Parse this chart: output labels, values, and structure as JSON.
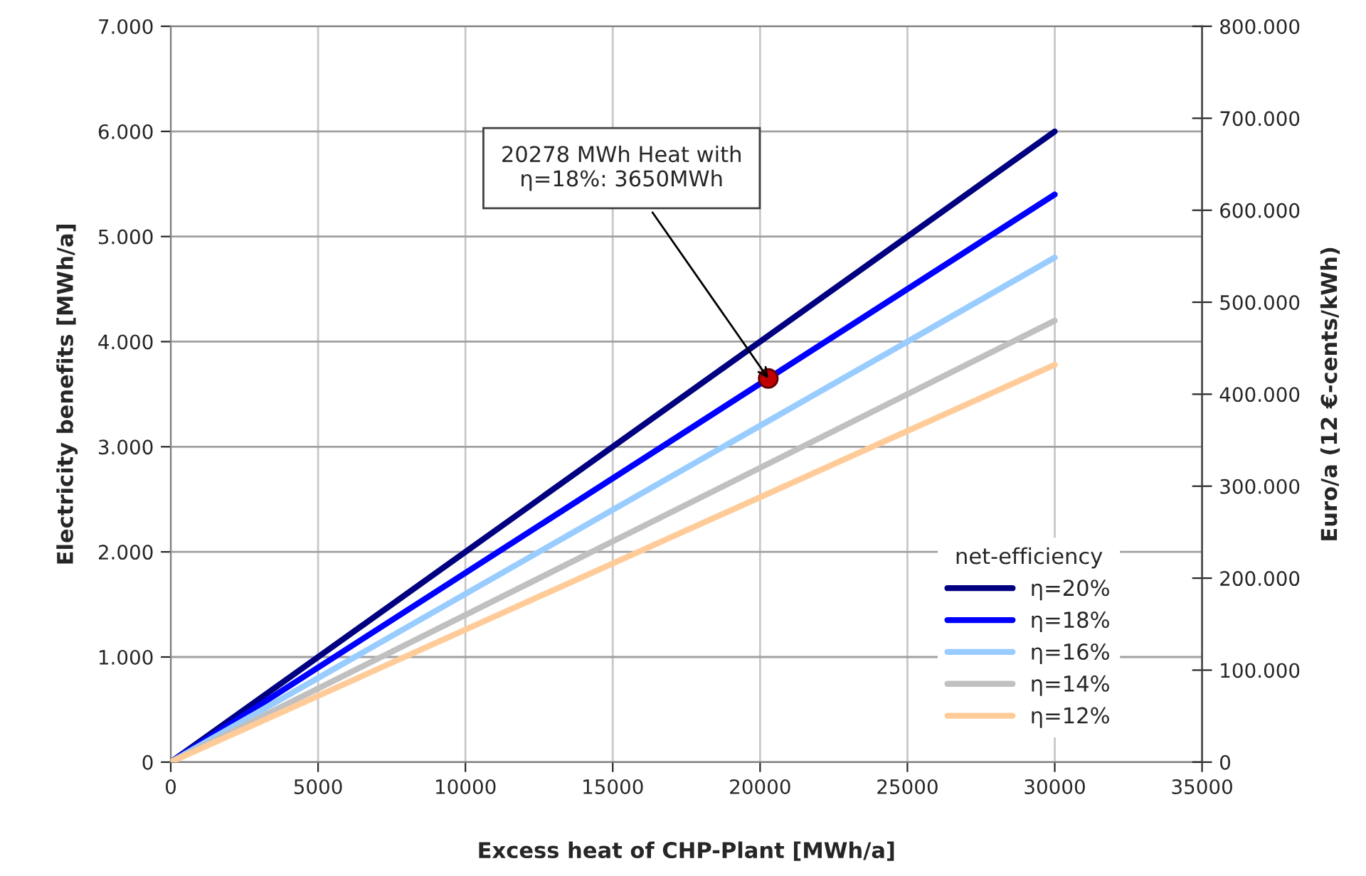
{
  "chart_data": {
    "type": "line",
    "xlabel": "Excess heat of CHP-Plant [MWh/a]",
    "ylabel": "Electricity benefits [MWh/a]",
    "y2label": "Euro/a (12 €-cents/kWh)",
    "legend_title": "net-efficiency",
    "x": [
      0,
      30000
    ],
    "series": [
      {
        "name": "η=20%",
        "color": "#000080",
        "values": [
          0,
          6000
        ]
      },
      {
        "name": "η=18%",
        "color": "#0000ff",
        "values": [
          0,
          5400
        ]
      },
      {
        "name": "η=16%",
        "color": "#99ccff",
        "values": [
          0,
          4800
        ]
      },
      {
        "name": "η=14%",
        "color": "#c0c0c0",
        "values": [
          0,
          4200
        ]
      },
      {
        "name": "η=12%",
        "color": "#ffcc99",
        "values": [
          0,
          3780
        ]
      },
      {
        "type": "scatter",
        "color": "#c00000",
        "x": [
          20278
        ],
        "values": [
          3650
        ],
        "marker": "circle"
      }
    ],
    "annotations": [
      {
        "text": "20278 MWh Heat with\nη=18%: 3650MWh",
        "x": 20278,
        "y": 3650
      }
    ],
    "xlim": [
      0,
      35000
    ],
    "xticks": [
      0,
      5000,
      10000,
      15000,
      20000,
      25000,
      30000,
      35000
    ],
    "ylim": [
      0,
      7000
    ],
    "yticks": [
      {
        "value": 0,
        "label": "0"
      },
      {
        "value": 1000,
        "label": "1.000"
      },
      {
        "value": 2000,
        "label": "2.000"
      },
      {
        "value": 3000,
        "label": "3.000"
      },
      {
        "value": 4000,
        "label": "4.000"
      },
      {
        "value": 5000,
        "label": "5.000"
      },
      {
        "value": 6000,
        "label": "6.000"
      },
      {
        "value": 7000,
        "label": "7.000"
      }
    ],
    "y2lim": [
      0,
      800000
    ],
    "y2ticks": [
      {
        "value": 0,
        "label": "0"
      },
      {
        "value": 100000,
        "label": "100.000"
      },
      {
        "value": 200000,
        "label": "200.000"
      },
      {
        "value": 300000,
        "label": "300.000"
      },
      {
        "value": 400000,
        "label": "400.000"
      },
      {
        "value": 500000,
        "label": "500.000"
      },
      {
        "value": 600000,
        "label": "600.000"
      },
      {
        "value": 700000,
        "label": "700.000"
      },
      {
        "value": 800000,
        "label": "800.000"
      }
    ],
    "grid": true,
    "legend": "bottom right",
    "marker": "none",
    "line_style": "solid"
  }
}
